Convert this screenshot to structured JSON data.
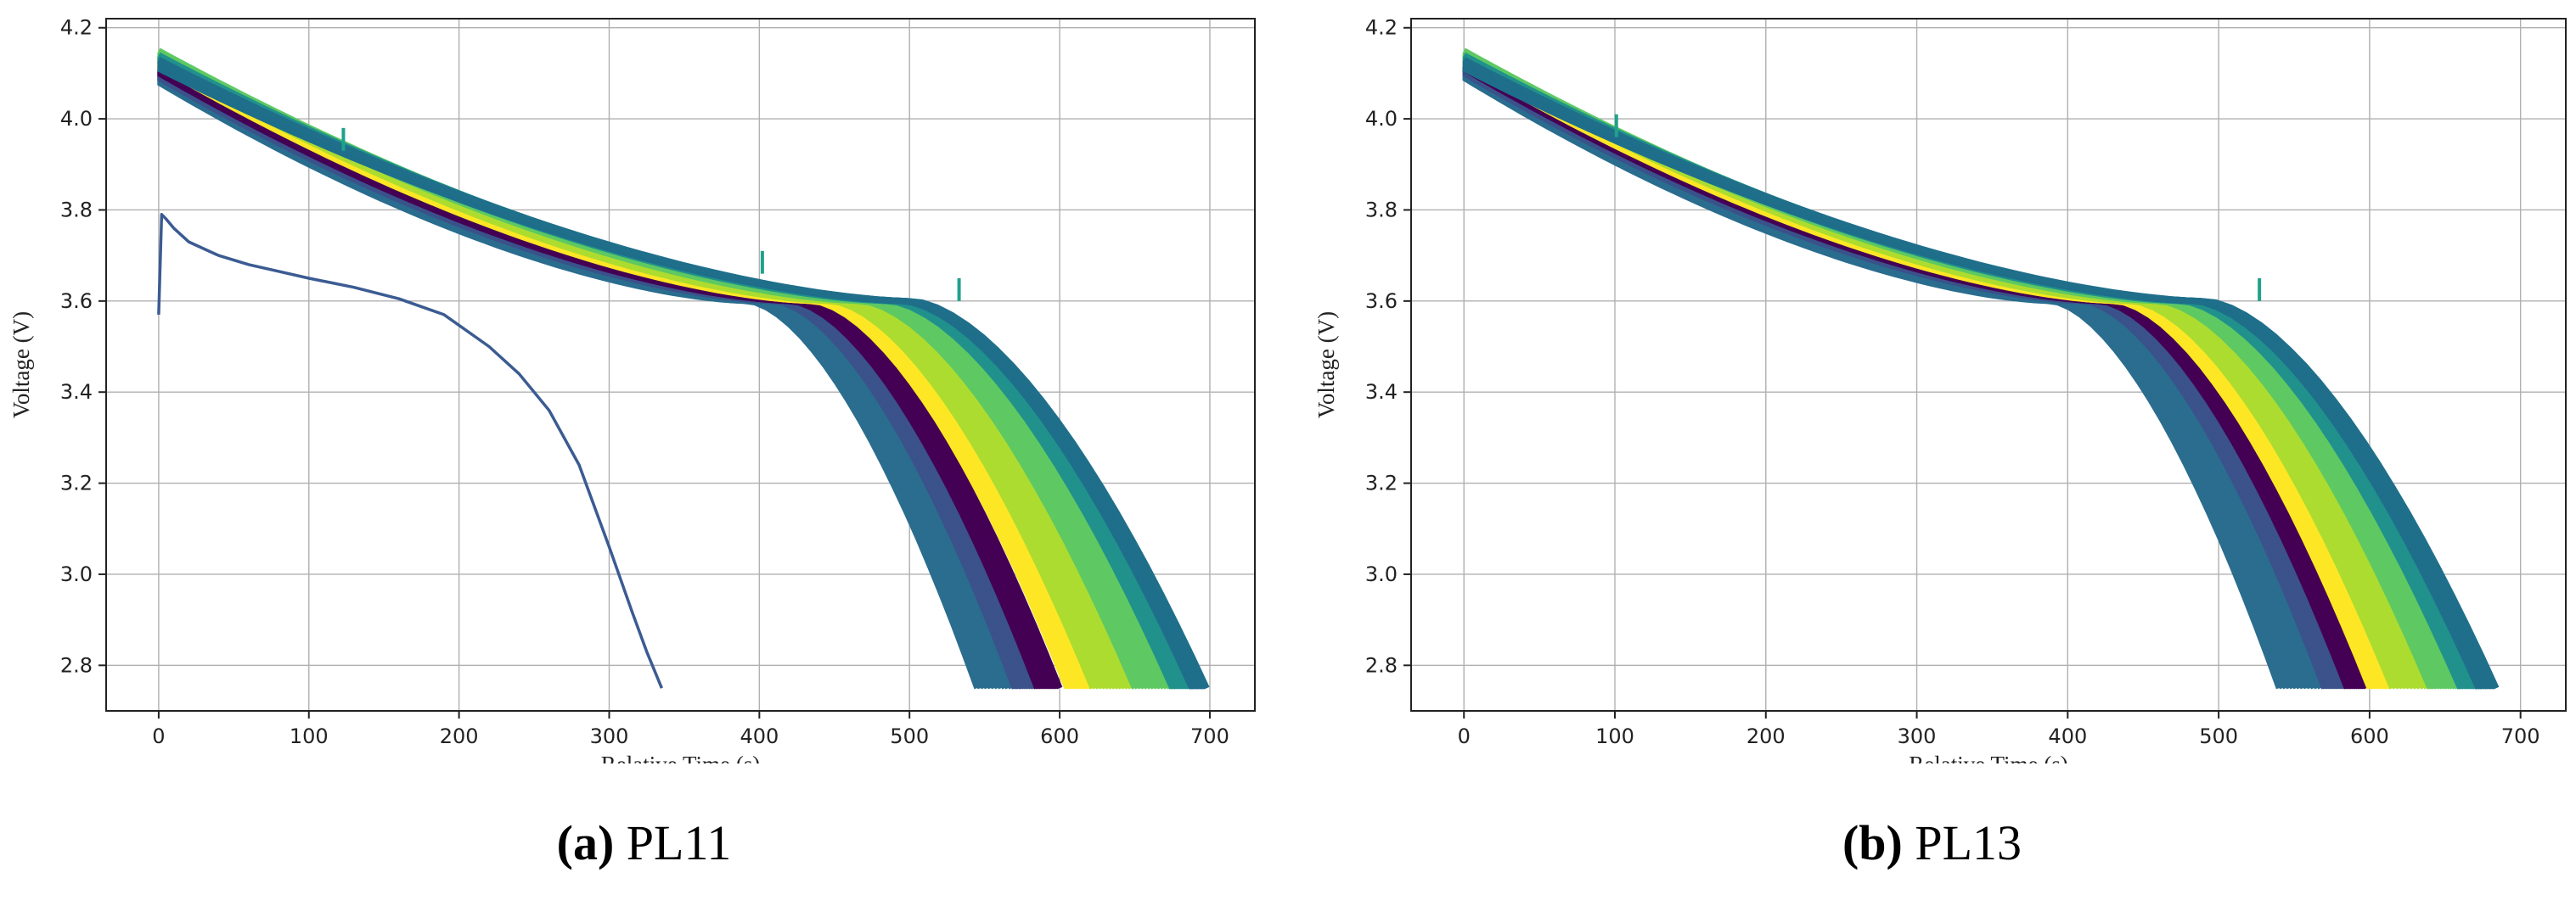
{
  "figure": {
    "panel_a": {
      "letter": "(a)",
      "label": "PL11"
    },
    "panel_b": {
      "letter": "(b)",
      "label": "PL13"
    }
  },
  "colors": {
    "viridis_fan": [
      "#3b518b",
      "#2c728e",
      "#21918c",
      "#28ae80",
      "#5ec962",
      "#addc30",
      "#fde725",
      "#440154"
    ],
    "outlier_curve": "#3b5b92",
    "grid": "#b0b0b0"
  },
  "chart_data": [
    {
      "type": "line",
      "title": "",
      "xlabel": "Relative Time (s)",
      "ylabel": "Voltage (V)",
      "xlim": [
        -35,
        730
      ],
      "ylim": [
        2.7,
        4.22
      ],
      "xticks": [
        0,
        100,
        200,
        300,
        400,
        500,
        600,
        700
      ],
      "yticks": [
        2.8,
        3.0,
        3.2,
        3.4,
        3.6,
        3.8,
        4.0,
        4.2
      ],
      "grid": true,
      "cutoff_voltage": 2.75,
      "bands": [
        {
          "color": "#2a6d8f",
          "start_v": [
            4.08,
            4.1
          ],
          "end_time": [
            545,
            575
          ]
        },
        {
          "color": "#3b528b",
          "start_v": [
            4.09,
            4.11
          ],
          "end_time": [
            570,
            585
          ]
        },
        {
          "color": "#440154",
          "start_v": [
            4.1,
            4.12
          ],
          "end_time": [
            585,
            600
          ]
        },
        {
          "color": "#fde725",
          "start_v": [
            4.115,
            4.13
          ],
          "end_time": [
            605,
            622
          ]
        },
        {
          "color": "#addc30",
          "start_v": [
            4.125,
            4.14
          ],
          "end_time": [
            622,
            650
          ]
        },
        {
          "color": "#5ec962",
          "start_v": [
            4.13,
            4.15
          ],
          "end_time": [
            650,
            678
          ]
        },
        {
          "color": "#21918c",
          "start_v": [
            4.12,
            4.14
          ],
          "end_time": [
            675,
            690
          ]
        },
        {
          "color": "#1f6f8b",
          "start_v": [
            4.11,
            4.13
          ],
          "end_time": [
            688,
            698
          ]
        }
      ],
      "outlier": {
        "name": "",
        "x": [
          0,
          2,
          5,
          10,
          20,
          40,
          60,
          80,
          100,
          130,
          160,
          190,
          220,
          240,
          260,
          280,
          300,
          315,
          325,
          335
        ],
        "y": [
          3.57,
          3.79,
          3.78,
          3.76,
          3.73,
          3.7,
          3.68,
          3.665,
          3.65,
          3.63,
          3.605,
          3.57,
          3.5,
          3.44,
          3.36,
          3.24,
          3.06,
          2.92,
          2.83,
          2.75
        ]
      },
      "spikes": [
        {
          "x": 123,
          "y": 3.98
        },
        {
          "x": 402,
          "y": 3.71
        },
        {
          "x": 533,
          "y": 3.65
        }
      ]
    },
    {
      "type": "line",
      "title": "",
      "xlabel": "Relative Time (s)",
      "ylabel": "Voltage (V)",
      "xlim": [
        -35,
        730
      ],
      "ylim": [
        2.7,
        4.22
      ],
      "xticks": [
        0,
        100,
        200,
        300,
        400,
        500,
        600,
        700
      ],
      "yticks": [
        2.8,
        3.0,
        3.2,
        3.4,
        3.6,
        3.8,
        4.0,
        4.2
      ],
      "grid": true,
      "cutoff_voltage": 2.75,
      "bands": [
        {
          "color": "#2a6d8f",
          "start_v": [
            4.09,
            4.11
          ],
          "end_time": [
            540,
            570
          ]
        },
        {
          "color": "#3b528b",
          "start_v": [
            4.1,
            4.12
          ],
          "end_time": [
            570,
            585
          ]
        },
        {
          "color": "#440154",
          "start_v": [
            4.11,
            4.13
          ],
          "end_time": [
            585,
            598
          ]
        },
        {
          "color": "#fde725",
          "start_v": [
            4.12,
            4.135
          ],
          "end_time": [
            600,
            615
          ]
        },
        {
          "color": "#addc30",
          "start_v": [
            4.13,
            4.145
          ],
          "end_time": [
            615,
            645
          ]
        },
        {
          "color": "#5ec962",
          "start_v": [
            4.13,
            4.15
          ],
          "end_time": [
            640,
            662
          ]
        },
        {
          "color": "#21918c",
          "start_v": [
            4.12,
            4.14
          ],
          "end_time": [
            660,
            675
          ]
        },
        {
          "color": "#1f6f8b",
          "start_v": [
            4.11,
            4.13
          ],
          "end_time": [
            672,
            684
          ]
        }
      ],
      "spikes": [
        {
          "x": 101,
          "y": 4.01
        },
        {
          "x": 527,
          "y": 3.65
        }
      ]
    }
  ]
}
